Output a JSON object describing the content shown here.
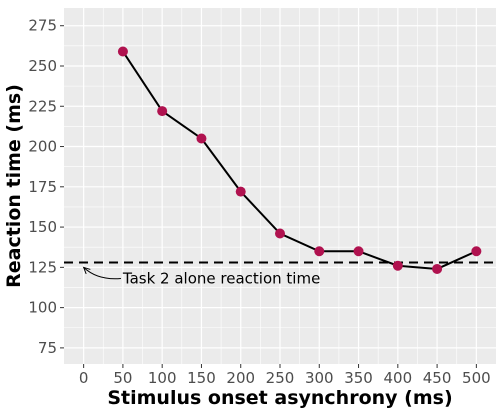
{
  "chart_data": {
    "type": "line",
    "title": "",
    "xlabel": "Stimulus onset asynchrony (ms)",
    "ylabel": "Reaction time (ms)",
    "xlim": [
      -25,
      525
    ],
    "ylim": [
      65,
      286
    ],
    "x_ticks": [
      0,
      50,
      100,
      150,
      200,
      250,
      300,
      350,
      400,
      450,
      500
    ],
    "y_ticks": [
      75,
      100,
      125,
      150,
      175,
      200,
      225,
      250,
      275
    ],
    "grid": true,
    "series": [
      {
        "x": [
          50,
          100,
          150,
          200,
          250,
          300,
          350,
          400,
          450,
          500
        ],
        "y": [
          259,
          222,
          205,
          172,
          146,
          135,
          135,
          126,
          124,
          135
        ],
        "line_color": "#000000",
        "point_color": "#b0124f"
      }
    ],
    "reference_line": {
      "y": 128,
      "style": "dashed",
      "color": "#000000"
    },
    "annotation": {
      "text": "Task 2 alone reaction time",
      "arrow_to": [
        0,
        125
      ],
      "text_at": [
        50,
        115
      ]
    },
    "panel_color": "#ebebeb",
    "grid_color": "#ffffff"
  }
}
